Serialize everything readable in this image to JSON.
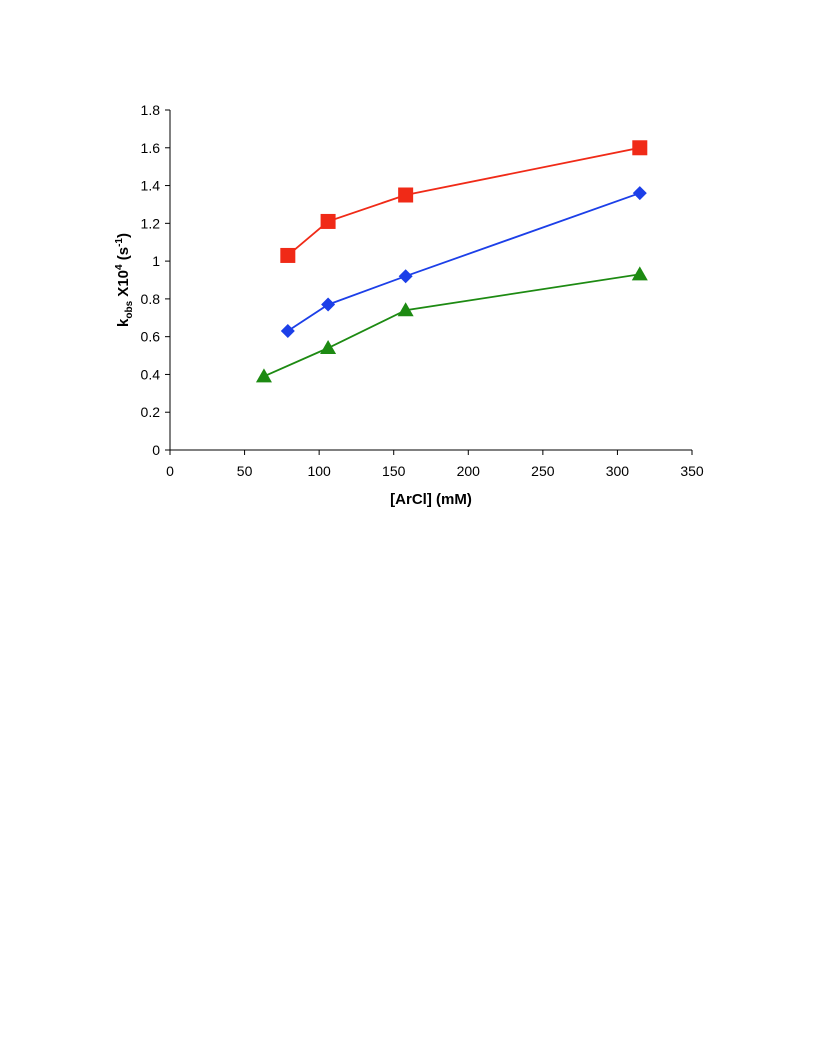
{
  "chart_data": {
    "type": "line",
    "title": "",
    "xlabel": "[ArCl] (mM)",
    "ylabel": {
      "main": "k",
      "sub": "obs",
      "mid": " X10",
      "sup": "4",
      "unit_open": " (s",
      "unit_sup": "-1",
      "unit_close": ")"
    },
    "xlim": [
      0,
      350
    ],
    "ylim": [
      0,
      1.8
    ],
    "x_ticks": [
      0,
      50,
      100,
      150,
      200,
      250,
      300,
      350
    ],
    "y_ticks": [
      0,
      0.2,
      0.4,
      0.6,
      0.8,
      1,
      1.2,
      1.4,
      1.6,
      1.8
    ],
    "x_tick_labels": [
      "0",
      "50",
      "100",
      "150",
      "200",
      "250",
      "300",
      "350"
    ],
    "y_tick_labels": [
      "0",
      "0.2",
      "0.4",
      "0.6",
      "0.8",
      "1",
      "1.2",
      "1.4",
      "1.6",
      "1.8"
    ],
    "grid": false,
    "legend": "none",
    "series": [
      {
        "marker": "square",
        "color": "#f02a17",
        "x": [
          79,
          106,
          158,
          315
        ],
        "y": [
          1.03,
          1.21,
          1.35,
          1.6
        ]
      },
      {
        "marker": "diamond",
        "color": "#1c3fe8",
        "x": [
          79,
          106,
          158,
          315
        ],
        "y": [
          0.63,
          0.77,
          0.92,
          1.36
        ]
      },
      {
        "marker": "triangle",
        "color": "#1d8a12",
        "x": [
          63,
          106,
          158,
          315
        ],
        "y": [
          0.39,
          0.54,
          0.74,
          0.93
        ]
      }
    ]
  }
}
